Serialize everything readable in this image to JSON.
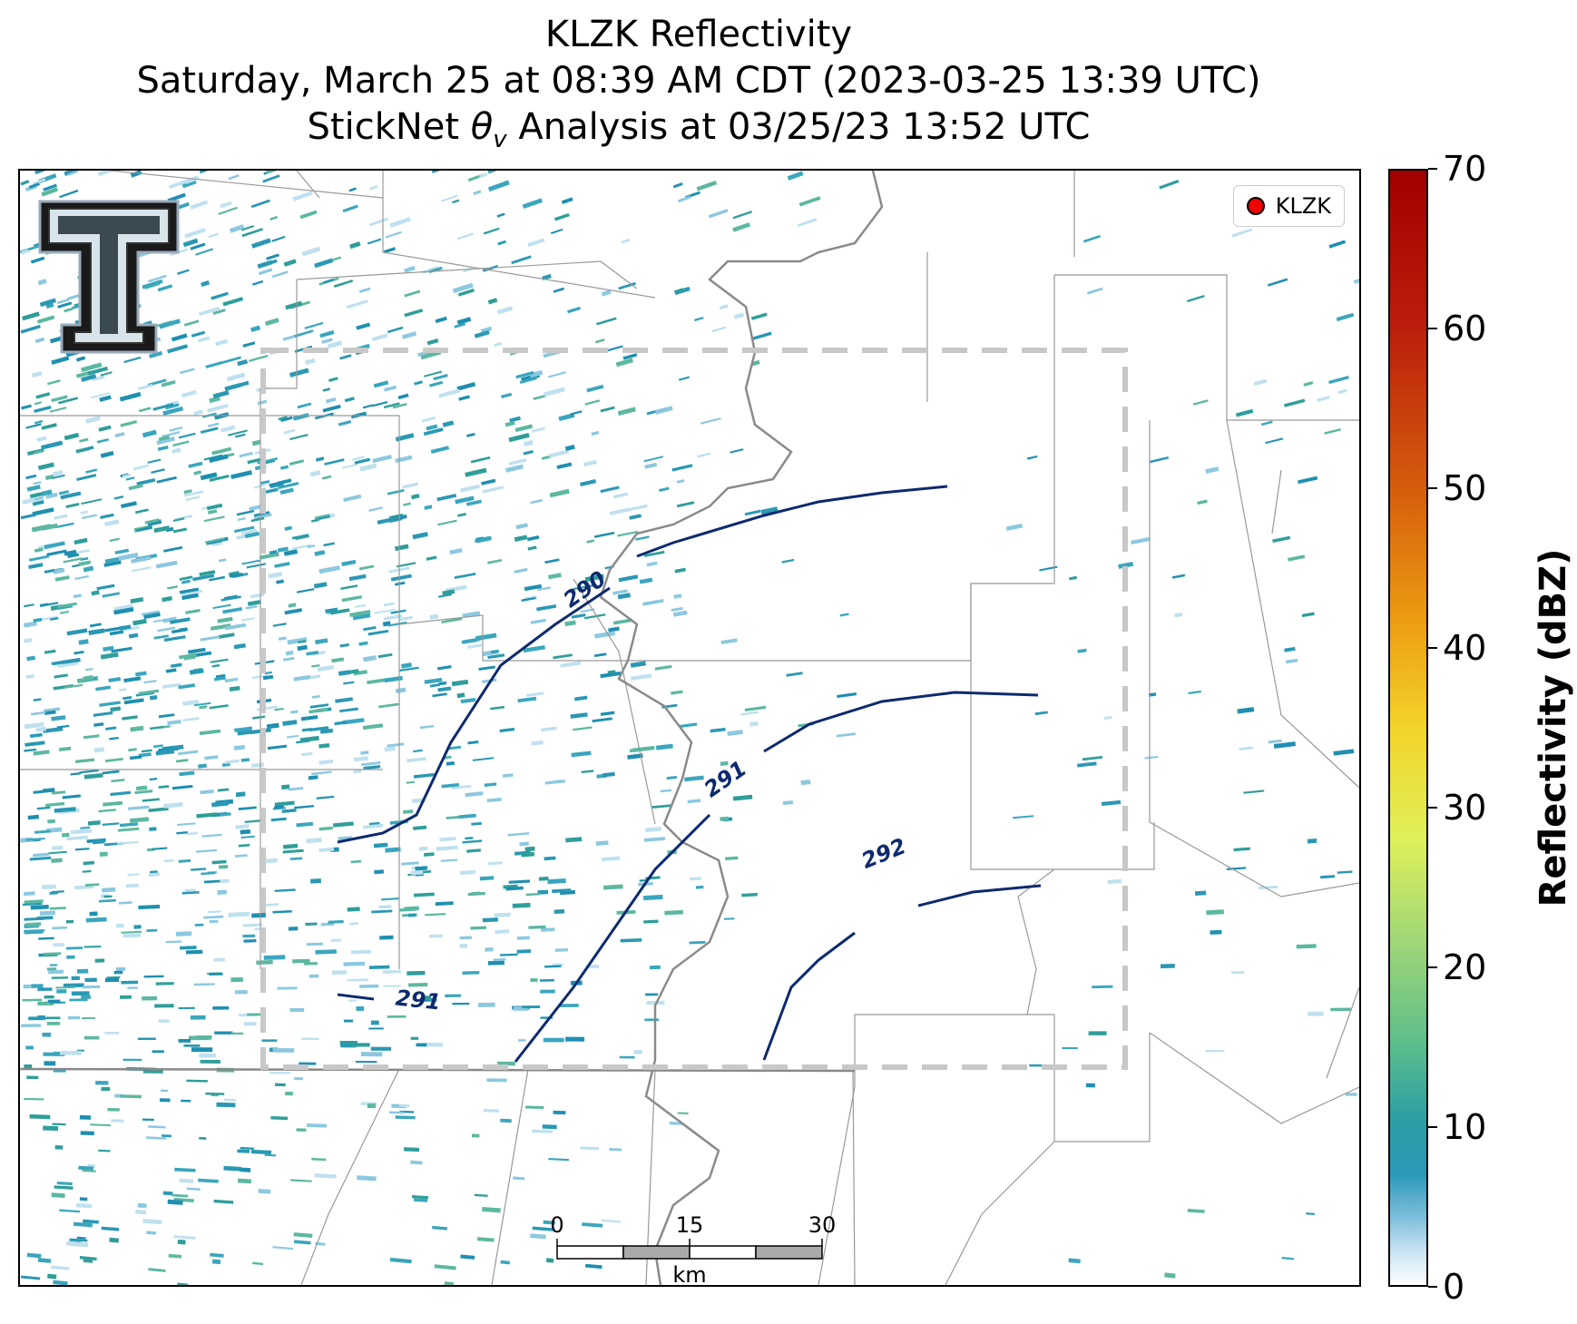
{
  "title": {
    "line1": "KLZK Reflectivity",
    "line2": "Saturday, March 25 at 08:39 AM CDT (2023-03-25 13:39 UTC)",
    "line3_prefix": "StickNet ",
    "line3_symbol": "θ",
    "line3_sub": "v",
    "line3_suffix": " Analysis at 03/25/23 13:52 UTC"
  },
  "legend": {
    "label": "KLZK",
    "marker_color": "#ee0000"
  },
  "contours": {
    "labels": [
      "290",
      "291",
      "291",
      "292"
    ],
    "color": "#0d2a6e"
  },
  "scalebar": {
    "ticks": [
      "0",
      "15",
      "30"
    ],
    "unit": "km"
  },
  "colorbar": {
    "title": "Reflectivity (dBZ)",
    "ticks": [
      "0",
      "10",
      "20",
      "30",
      "40",
      "50",
      "60",
      "70"
    ],
    "min": 0,
    "max": 70
  },
  "logo": {
    "letter": "T",
    "name": "texas-tech-logo"
  },
  "colors": {
    "analysis_box": "#c8c8c8",
    "river": "#808080",
    "boundaries": "#999999"
  }
}
